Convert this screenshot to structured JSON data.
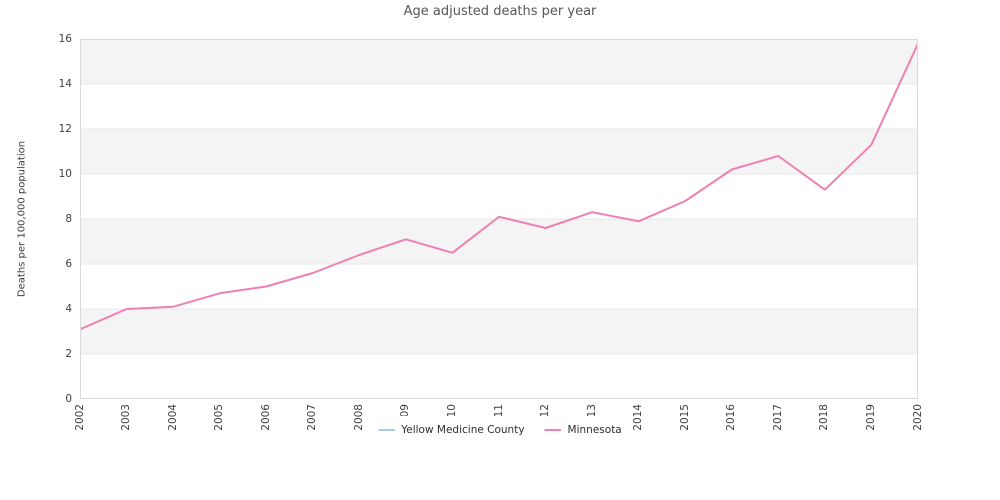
{
  "chart_data": {
    "type": "line",
    "title": "Age adjusted deaths per year",
    "xlabel": "",
    "ylabel": "Deaths per 100,000 population",
    "x": [
      2002,
      2003,
      2004,
      2005,
      2006,
      2007,
      2008,
      2009,
      2010,
      2011,
      2012,
      2013,
      2014,
      2015,
      2016,
      2017,
      2018,
      2019,
      2020
    ],
    "x_tick_labels": [
      "2002",
      "2003",
      "2004",
      "2005",
      "2006",
      "2007",
      "2008",
      "2009",
      "2010",
      "2011",
      "2012",
      "2013",
      "2014",
      "2015",
      "2016",
      "2017",
      "2018",
      "2019",
      "2020"
    ],
    "series": [
      {
        "name": "Yellow Medicine County",
        "color": "#a6cee3",
        "values": []
      },
      {
        "name": "Minnesota",
        "color": "#ef80b2",
        "values": [
          3.1,
          4.0,
          4.1,
          4.7,
          5.0,
          5.6,
          6.4,
          7.1,
          6.5,
          8.1,
          7.6,
          8.3,
          7.9,
          8.8,
          10.2,
          10.8,
          9.3,
          11.3,
          15.8
        ]
      }
    ],
    "ylim": [
      0,
      16
    ],
    "yticks": [
      0,
      2,
      4,
      6,
      8,
      10,
      12,
      14,
      16
    ],
    "grid": "horizontal shaded bands between alternate ticks",
    "band_color": "#f4f4f4",
    "gridline_color": "#e7e7e7",
    "axis_border_color": "#d9d9d9",
    "legend_position": "bottom center"
  }
}
